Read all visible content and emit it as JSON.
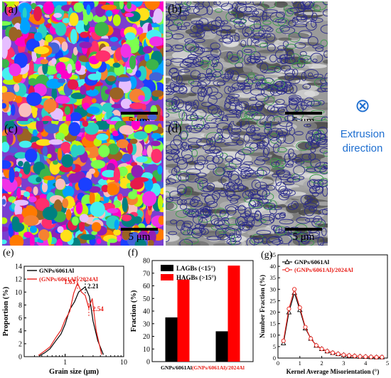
{
  "panels": {
    "a": {
      "label": "(a)",
      "scale": "5 μm"
    },
    "b": {
      "label": "(b)",
      "scale": "5 μm"
    },
    "c": {
      "label": "(c)",
      "scale": "5 μm"
    },
    "d": {
      "label": "(d)",
      "scale": "5 μm"
    }
  },
  "extrusion": {
    "symbol": "⊗",
    "line1": "Extrusion",
    "line2": "direction"
  },
  "colors": {
    "black_series": "#000000",
    "red_series": "#e8201a",
    "extrusion_text": "#1f6fd0"
  },
  "chart_data": [
    {
      "id": "e",
      "label": "(e)",
      "type": "line",
      "xlabel": "Grain size (μm)",
      "ylabel": "Proportion (%)",
      "xscale": "log",
      "xlim": [
        0.2,
        10
      ],
      "ylim": [
        0,
        14
      ],
      "yticks": [
        0,
        2,
        4,
        6,
        8,
        10,
        12,
        14
      ],
      "xticks": [
        1,
        10
      ],
      "legend": "top-left",
      "series": [
        {
          "name": "GNPs/6061Al",
          "color": "#000000",
          "x": [
            0.36,
            0.45,
            0.55,
            0.7,
            0.85,
            1.0,
            1.2,
            1.45,
            1.7,
            2.0,
            2.2,
            2.6,
            3.0,
            3.6,
            4.5
          ],
          "y": [
            0.1,
            0.6,
            1.2,
            2.5,
            3.5,
            5.0,
            7.3,
            8.5,
            10.0,
            10.5,
            10.8,
            9.3,
            5.5,
            2.5,
            0.3
          ]
        },
        {
          "name": "(GNPs/6061Al)/2024Al",
          "color": "#e8201a",
          "x": [
            0.35,
            0.45,
            0.55,
            0.7,
            0.85,
            1.0,
            1.2,
            1.4,
            1.63,
            1.9,
            2.2,
            2.54,
            2.9,
            3.4,
            4.2
          ],
          "y": [
            0.2,
            0.9,
            1.5,
            3.0,
            4.1,
            5.7,
            7.0,
            9.8,
            11.4,
            10.0,
            9.5,
            7.5,
            9.0,
            4.0,
            0.3
          ]
        }
      ],
      "annotations": [
        {
          "text": "1.63",
          "color": "#e8201a",
          "x": 1.63
        },
        {
          "text": "2.21",
          "color": "#000000",
          "x": 2.21
        },
        {
          "text": "2.54",
          "color": "#e8201a",
          "x": 2.54
        }
      ]
    },
    {
      "id": "f",
      "label": "(f)",
      "type": "bar",
      "ylabel": "Fraction (%)",
      "ylim": [
        0,
        80
      ],
      "yticks": [
        0,
        10,
        20,
        30,
        40,
        50,
        60,
        70,
        80
      ],
      "categories": [
        "GNPs/6061Al",
        "(GNPs/6061Al)/2024Al"
      ],
      "category_colors": [
        "#000000",
        "#e8201a"
      ],
      "legend": "top-left",
      "series": [
        {
          "name": "LAGBs (<15°)",
          "color": "#000000",
          "values": [
            35,
            24
          ]
        },
        {
          "name": "HAGBs (>15°)",
          "color": "#ff0000",
          "values": [
            65,
            76
          ]
        }
      ]
    },
    {
      "id": "g",
      "label": "(g)",
      "type": "line",
      "xlabel": "Kernel Average Misorientation (°)",
      "ylabel": "Number Fraction (%)",
      "xlim": [
        0,
        5
      ],
      "ylim": [
        0,
        45
      ],
      "xticks": [
        0,
        1,
        2,
        3,
        4,
        5
      ],
      "yticks": [
        0,
        5,
        10,
        15,
        20,
        25,
        30,
        35,
        40,
        45
      ],
      "legend": "top-left",
      "series": [
        {
          "name": "GNPs/6061Al",
          "color": "#000000",
          "marker": "triangle",
          "x": [
            0.25,
            0.5,
            0.75,
            1.0,
            1.25,
            1.5,
            1.75,
            2.0,
            2.25,
            2.5,
            2.75,
            3.0,
            3.25,
            3.5,
            3.75,
            4.0,
            4.25,
            4.5,
            4.75
          ],
          "y": [
            6.5,
            20,
            28.5,
            21,
            13,
            8.5,
            5.5,
            4,
            3,
            2.3,
            1.8,
            1.4,
            1.1,
            0.9,
            0.7,
            0.6,
            0.5,
            0.4,
            0.4
          ]
        },
        {
          "name": "(GNPs/6061Al)/2024Al",
          "color": "#e8201a",
          "marker": "circle",
          "x": [
            0.25,
            0.5,
            0.75,
            1.0,
            1.25,
            1.5,
            1.75,
            2.0,
            2.25,
            2.5,
            2.75,
            3.0,
            3.25,
            3.5,
            3.75,
            4.0,
            4.25,
            4.5,
            4.75
          ],
          "y": [
            7.5,
            21.5,
            30,
            22,
            13.5,
            8.5,
            5.5,
            4,
            3,
            2.3,
            1.8,
            1.4,
            1.1,
            0.9,
            0.7,
            0.6,
            0.5,
            0.4,
            0.4
          ]
        }
      ]
    }
  ]
}
